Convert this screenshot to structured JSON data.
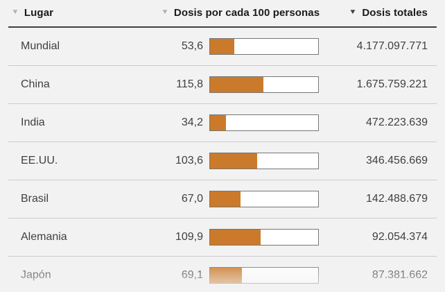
{
  "icons": {
    "sort_desc": "▼"
  },
  "colors": {
    "background": "#f2f2f2",
    "bar_fill": "#cb7a2b",
    "bar_border": "#767676",
    "header_text": "#1a1a1a",
    "row_text": "#404040",
    "separator": "#cbcbcb",
    "sort_icon_inactive": "#b1b1b1",
    "sort_icon_active": "#3f3f42"
  },
  "header": {
    "columns": [
      {
        "label": "Lugar",
        "sort_active": false
      },
      {
        "label": "Dosis por cada 100 personas",
        "sort_active": false
      },
      {
        "label": "Dosis totales",
        "sort_active": true
      }
    ]
  },
  "table": {
    "rows": [
      {
        "place": "Mundial",
        "per100": "53,6",
        "per100_value": 53.6,
        "total": "4.177.097.771"
      },
      {
        "place": "China",
        "per100": "115,8",
        "per100_value": 115.8,
        "total": "1.675.759.221"
      },
      {
        "place": "India",
        "per100": "34,2",
        "per100_value": 34.2,
        "total": "472.223.639"
      },
      {
        "place": "EE.UU.",
        "per100": "103,6",
        "per100_value": 103.6,
        "total": "346.456.669"
      },
      {
        "place": "Brasil",
        "per100": "67,0",
        "per100_value": 67.0,
        "total": "142.488.679"
      },
      {
        "place": "Alemania",
        "per100": "109,9",
        "per100_value": 109.9,
        "total": "92.054.374"
      },
      {
        "place": "Japón",
        "per100": "69,1",
        "per100_value": 69.1,
        "total": "87.381.662"
      }
    ]
  },
  "chart_data": {
    "type": "table",
    "title": "",
    "columns": [
      "Lugar",
      "Dosis por cada 100 personas",
      "Dosis totales"
    ],
    "categories": [
      "Mundial",
      "China",
      "India",
      "EE.UU.",
      "Brasil",
      "Alemania",
      "Japón"
    ],
    "series": [
      {
        "name": "Dosis por cada 100 personas",
        "values": [
          53.6,
          115.8,
          34.2,
          103.6,
          67.0,
          109.9,
          69.1
        ]
      },
      {
        "name": "Dosis totales",
        "values": [
          4177097771,
          1675759221,
          472223639,
          346456669,
          142488679,
          92054374,
          87381662
        ]
      }
    ],
    "bar_scale_max": 236,
    "sorted_by": "Dosis totales (descendente)",
    "legend_position": "none",
    "grid": false
  }
}
